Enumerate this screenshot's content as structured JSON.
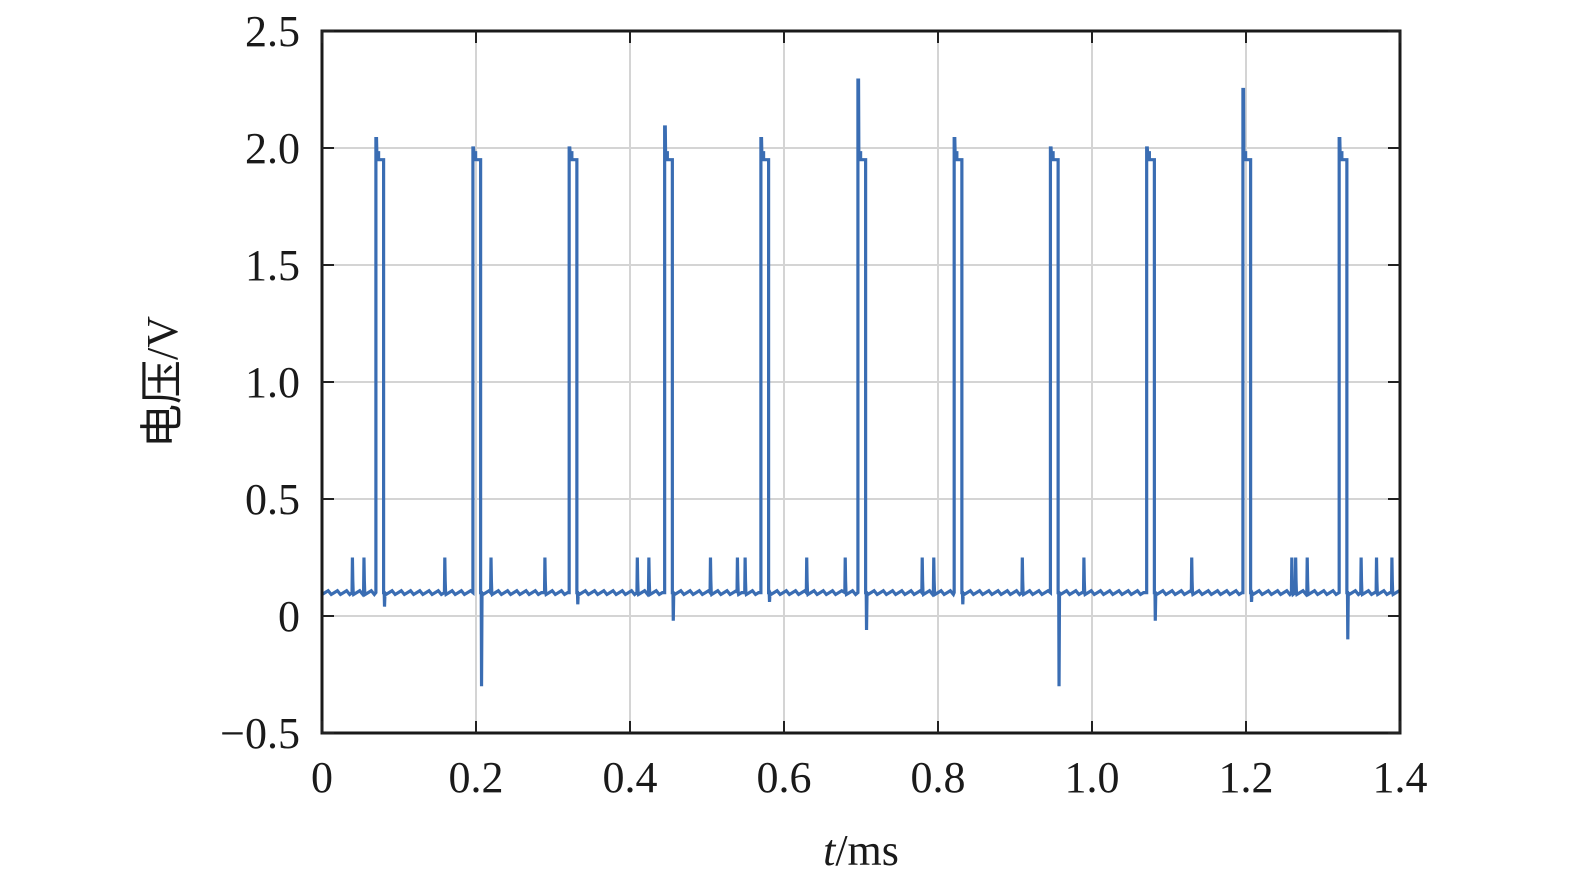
{
  "chart_data": {
    "type": "line",
    "xlabel_italic": "t",
    "xlabel_unit": "/ms",
    "ylabel": "电压/V",
    "xlim": [
      0,
      1.4
    ],
    "ylim": [
      -0.5,
      2.5
    ],
    "x_ticks": [
      0,
      0.2,
      0.4,
      0.6,
      0.8,
      1.0,
      1.2,
      1.4
    ],
    "x_tick_labels": [
      "0",
      "0.2",
      "0.4",
      "0.6",
      "0.8",
      "1.0",
      "1.2",
      "1.4"
    ],
    "y_ticks": [
      -0.5,
      0,
      0.5,
      1.0,
      1.5,
      2.0,
      2.5
    ],
    "y_tick_labels": [
      "−0.5",
      "0",
      "0.5",
      "1.0",
      "1.5",
      "2.0",
      "2.5"
    ],
    "grid": true,
    "baseline_voltage": 0.1,
    "pulse_high_voltage": 1.95,
    "pulses": [
      {
        "start": 0.07,
        "end": 0.08,
        "peak": 2.04,
        "undershoot": 0.04
      },
      {
        "start": 0.196,
        "end": 0.206,
        "peak": 2.0,
        "undershoot": -0.3
      },
      {
        "start": 0.321,
        "end": 0.331,
        "peak": 2.0,
        "undershoot": 0.05
      },
      {
        "start": 0.445,
        "end": 0.455,
        "peak": 2.09,
        "undershoot": -0.02
      },
      {
        "start": 0.57,
        "end": 0.58,
        "peak": 2.04,
        "undershoot": 0.06
      },
      {
        "start": 0.696,
        "end": 0.706,
        "peak": 2.29,
        "undershoot": -0.06
      },
      {
        "start": 0.821,
        "end": 0.831,
        "peak": 2.04,
        "undershoot": 0.05
      },
      {
        "start": 0.946,
        "end": 0.956,
        "peak": 2.0,
        "undershoot": -0.3
      },
      {
        "start": 1.071,
        "end": 1.081,
        "peak": 2.0,
        "undershoot": -0.02
      },
      {
        "start": 1.196,
        "end": 1.206,
        "peak": 2.25,
        "undershoot": 0.06
      },
      {
        "start": 1.321,
        "end": 1.331,
        "peak": 2.04,
        "undershoot": -0.1
      }
    ],
    "noise_spikes": [
      0.04,
      0.055,
      0.16,
      0.22,
      0.29,
      0.41,
      0.425,
      0.505,
      0.54,
      0.55,
      0.63,
      0.68,
      0.78,
      0.795,
      0.91,
      0.99,
      1.13,
      1.26,
      1.265,
      1.28,
      1.35,
      1.37,
      1.39
    ],
    "noise_spike_height": 0.15,
    "series_color": "#3a6db3"
  }
}
